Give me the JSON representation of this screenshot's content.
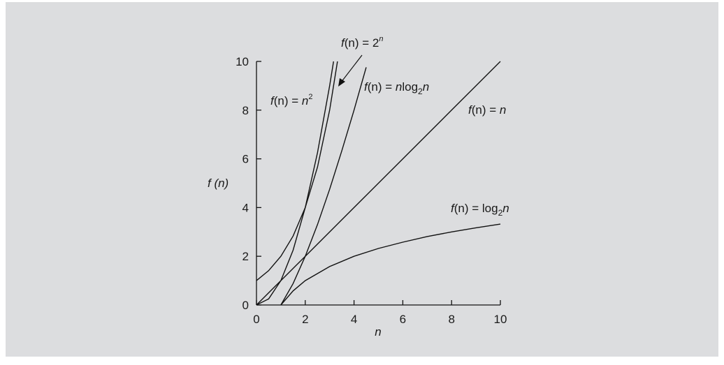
{
  "chart_data": {
    "type": "line",
    "xlabel": "n",
    "ylabel": "f (n)",
    "xlim": [
      0,
      10
    ],
    "ylim": [
      0,
      10
    ],
    "xticks": [
      "0",
      "2",
      "4",
      "6",
      "8",
      "10"
    ],
    "yticks": [
      "0",
      "2",
      "4",
      "6",
      "8",
      "10"
    ],
    "grid": false,
    "series": [
      {
        "name": "f(n) = n^2",
        "label_parts": [
          "f",
          "(n) = ",
          "n",
          "2"
        ],
        "x": [
          0,
          0.5,
          1,
          1.5,
          2,
          2.5,
          3,
          3.16
        ],
        "y": [
          0,
          0.25,
          1,
          2.25,
          4,
          6.25,
          9,
          10
        ]
      },
      {
        "name": "f(n) = 2^n",
        "label_parts": [
          "f",
          "(n) = 2",
          "n"
        ],
        "x": [
          0,
          0.5,
          1,
          1.5,
          2,
          2.5,
          3,
          3.32
        ],
        "y": [
          1,
          1.41,
          2,
          2.83,
          4,
          5.66,
          8,
          10
        ]
      },
      {
        "name": "f(n) = n log2 n",
        "label_parts": [
          "f",
          "(n) = ",
          "n",
          "log",
          "2",
          "n"
        ],
        "x": [
          1,
          1.5,
          2,
          2.5,
          3,
          3.5,
          4,
          4.5
        ],
        "y": [
          0,
          0.88,
          2,
          3.3,
          4.75,
          6.33,
          8,
          9.76
        ]
      },
      {
        "name": "f(n) = n",
        "label_parts": [
          "f",
          "(n) = ",
          "n"
        ],
        "x": [
          0,
          2,
          4,
          6,
          8,
          10
        ],
        "y": [
          0,
          2,
          4,
          6,
          8,
          10
        ]
      },
      {
        "name": "f(n) = log2 n",
        "label_parts": [
          "f",
          "(n) = log",
          "2",
          "n"
        ],
        "x": [
          1,
          1.5,
          2,
          3,
          4,
          5,
          6,
          7,
          8,
          9,
          10
        ],
        "y": [
          0,
          0.58,
          1,
          1.58,
          2,
          2.32,
          2.58,
          2.81,
          3,
          3.17,
          3.32
        ]
      }
    ]
  }
}
